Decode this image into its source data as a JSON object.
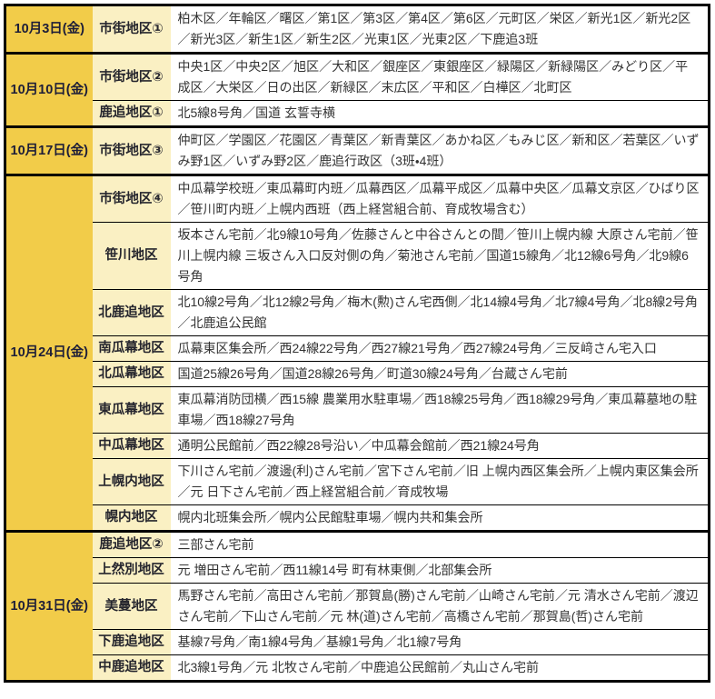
{
  "document": {
    "type": "collection-schedule-table",
    "columns": [
      "date",
      "district",
      "locations"
    ]
  },
  "colors": {
    "date_bg": "#f2cc49",
    "district_bg": "#faf0c3",
    "border": "#000000",
    "date_text": "#1e1e38",
    "body_text": "#333333"
  },
  "groups": [
    {
      "date": "10月3日(金)",
      "rows": [
        {
          "district": "市街地区①",
          "locations": "柏木区／年輪区／曙区／第1区／第3区／第4区／第6区／元町区／栄区／新光1区／新光2区／新光3区／新生1区／新生2区／光東1区／光東2区／下鹿追3班"
        }
      ]
    },
    {
      "date": "10月10日(金)",
      "rows": [
        {
          "district": "市街地区②",
          "locations": "中央1区／中央2区／旭区／大和区／銀座区／東銀座区／緑陽区／新緑陽区／みどり区／平成区／大栄区／日の出区／新緑区／末広区／平和区／白樺区／北町区"
        },
        {
          "district": "鹿追地区①",
          "locations": "北5線8号角／国道 玄誓寺横"
        }
      ]
    },
    {
      "date": "10月17日(金)",
      "rows": [
        {
          "district": "市街地区③",
          "locations": "仲町区／学園区／花園区／青葉区／新青葉区／あかね区／もみじ区／新和区／若葉区／いずみ野1区／いずみ野2区／鹿追行政区（3班・4班）"
        }
      ]
    },
    {
      "date": "10月24日(金)",
      "rows": [
        {
          "district": "市街地区④",
          "locations": "中瓜幕学校班／東瓜幕町内班／瓜幕西区／瓜幕平成区／瓜幕中央区／瓜幕文京区／ひばり区／笹川町内班／上幌内西班（西上経営組合前、育成牧場含む）"
        },
        {
          "district": "笹川地区",
          "locations": "坂本さん宅前／北9線10号角／佐藤さんと中谷さんとの間／笹川上幌内線 大原さん宅前／笹川上幌内線 三坂さん入口反対側の角／菊池さん宅前／国道15線角／北12線6号角／北9線6号角"
        },
        {
          "district": "北鹿追地区",
          "locations": "北10線2号角／北12線2号角／梅木(勲)さん宅西側／北14線4号角／北7線4号角／北8線2号角／北鹿追公民館"
        },
        {
          "district": "南瓜幕地区",
          "locations": "瓜幕東区集会所／西24線22号角／西27線21号角／西27線24号角／三反﨑さん宅入口"
        },
        {
          "district": "北瓜幕地区",
          "locations": "国道25線26号角／国道28線26号角／町道30線24号角／台蔵さん宅前"
        },
        {
          "district": "東瓜幕地区",
          "locations": "東瓜幕消防団横／西15線 農業用水駐車場／西18線25号角／西18線29号角／東瓜幕墓地の駐車場／西18線27号角"
        },
        {
          "district": "中瓜幕地区",
          "locations": "通明公民館前／西22線28号沿い／中瓜幕会館前／西21線24号角"
        },
        {
          "district": "上幌内地区",
          "locations": "下川さん宅前／渡邊(利)さん宅前／宮下さん宅前／旧 上幌内西区集会所／上幌内東区集会所／元 日下さん宅前／西上経営組合前／育成牧場"
        },
        {
          "district": "幌内地区",
          "locations": "幌内北班集会所／幌内公民館駐車場／幌内共和集会所"
        }
      ]
    },
    {
      "date": "10月31日(金)",
      "rows": [
        {
          "district": "鹿追地区②",
          "locations": "三部さん宅前"
        },
        {
          "district": "上然別地区",
          "locations": "元 増田さん宅前／西11線14号 町有林東側／北部集会所"
        },
        {
          "district": "美蔓地区",
          "locations": "馬野さん宅前／高田さん宅前／那賀島(勝)さん宅前／山崎さん宅前／元 清水さん宅前／渡辺さん宅前／下山さん宅前／元 林(道)さん宅前／高橋さん宅前／那賀島(哲)さん宅前"
        },
        {
          "district": "下鹿追地区",
          "locations": "基線7号角／南1線4号角／基線1号角／北1線7号角"
        },
        {
          "district": "中鹿追地区",
          "locations": "北3線1号角／元 北牧さん宅前／中鹿追公民館前／丸山さん宅前"
        }
      ]
    }
  ]
}
